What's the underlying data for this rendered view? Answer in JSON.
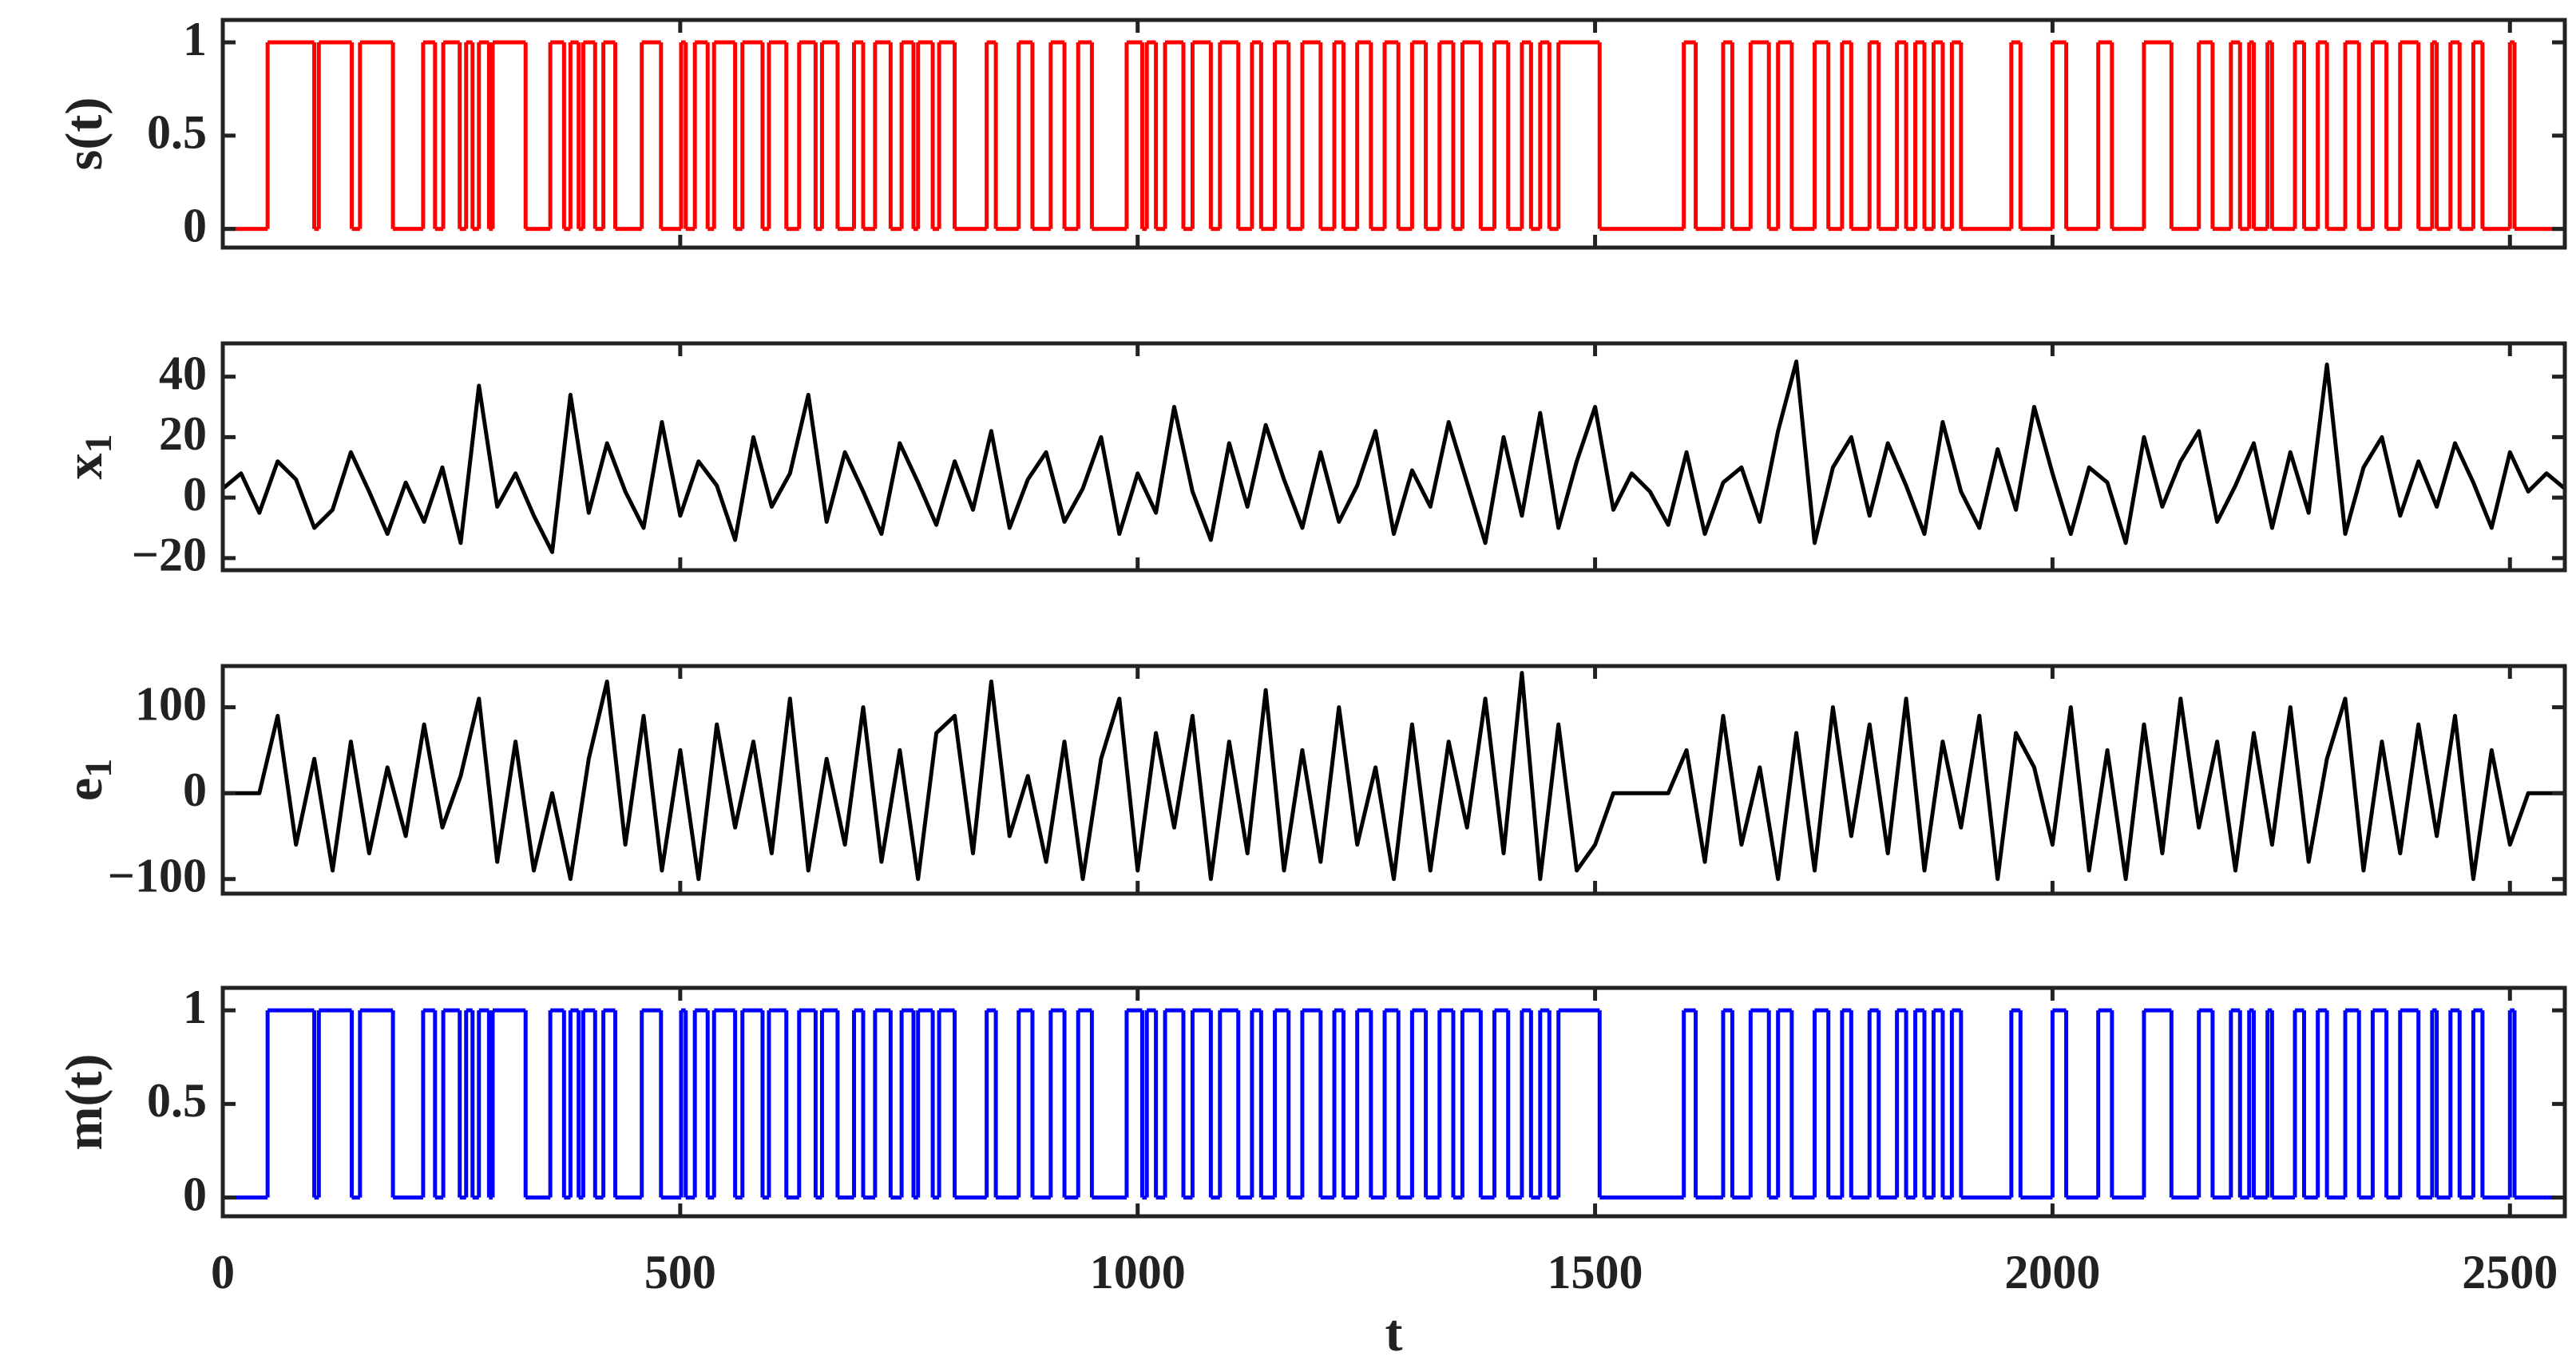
{
  "chart_data": [
    {
      "type": "step",
      "ylabel": {
        "text": "s(t)"
      },
      "color": "#ff0000",
      "xlim": [
        0,
        2560
      ],
      "xticks": [
        0,
        500,
        1000,
        1500,
        2000,
        2500
      ],
      "ylim": [
        -0.1,
        1.12
      ],
      "yticks": [
        0,
        0.5,
        1
      ],
      "x": [
        0,
        49,
        100,
        105,
        141,
        150,
        186,
        219,
        232,
        241,
        259,
        266,
        273,
        280,
        291,
        295,
        331,
        358,
        373,
        380,
        389,
        394,
        407,
        416,
        429,
        458,
        479,
        501,
        506,
        516,
        530,
        537,
        560,
        568,
        590,
        597,
        616,
        630,
        648,
        655,
        672,
        690,
        700,
        713,
        730,
        742,
        755,
        760,
        776,
        783,
        800,
        835,
        845,
        870,
        885,
        905,
        920,
        935,
        950,
        988,
        1005,
        1010,
        1020,
        1030,
        1050,
        1060,
        1080,
        1090,
        1110,
        1125,
        1135,
        1150,
        1165,
        1180,
        1200,
        1215,
        1225,
        1240,
        1255,
        1270,
        1285,
        1300,
        1315,
        1330,
        1345,
        1355,
        1375,
        1390,
        1405,
        1420,
        1430,
        1440,
        1450,
        1460,
        1505,
        1597,
        1610,
        1640,
        1650,
        1670,
        1690,
        1700,
        1715,
        1740,
        1755,
        1770,
        1780,
        1800,
        1810,
        1830,
        1840,
        1850,
        1860,
        1870,
        1880,
        1890,
        1900,
        1955,
        1965,
        2000,
        2015,
        2050,
        2065,
        2100,
        2130,
        2160,
        2175,
        2195,
        2205,
        2215,
        2220,
        2235,
        2240,
        2265,
        2275,
        2290,
        2300,
        2320,
        2335,
        2350,
        2365,
        2380,
        2400,
        2415,
        2420,
        2435,
        2445,
        2460,
        2470,
        2500,
        2505
      ],
      "values": [
        0,
        1,
        0,
        1,
        0,
        1,
        0,
        1,
        0,
        1,
        0,
        1,
        0,
        1,
        0,
        1,
        0,
        1,
        0,
        1,
        0,
        1,
        0,
        1,
        0,
        1,
        0,
        1,
        0,
        1,
        0,
        1,
        0,
        1,
        0,
        1,
        0,
        1,
        0,
        1,
        0,
        1,
        0,
        1,
        0,
        1,
        0,
        1,
        0,
        1,
        0,
        1,
        0,
        1,
        0,
        1,
        0,
        1,
        0,
        1,
        0,
        1,
        0,
        1,
        0,
        1,
        0,
        1,
        0,
        1,
        0,
        1,
        0,
        1,
        0,
        1,
        0,
        1,
        0,
        1,
        0,
        1,
        0,
        1,
        0,
        1,
        0,
        1,
        0,
        1,
        0,
        1,
        0,
        1,
        0,
        1,
        0,
        1,
        0,
        1,
        0,
        1,
        0,
        1,
        0,
        1,
        0,
        1,
        0,
        1,
        0,
        1,
        0,
        1,
        0,
        1,
        0,
        1,
        0,
        1,
        0,
        1,
        0,
        1,
        0,
        1,
        0,
        1,
        0,
        1,
        0,
        1,
        0,
        1,
        0,
        1,
        0,
        1,
        0,
        1,
        0,
        1,
        0,
        1,
        0,
        1,
        0,
        1,
        0,
        1,
        0
      ]
    },
    {
      "type": "line",
      "ylabel": {
        "text": "x",
        "subscript": "1"
      },
      "color": "#000000",
      "xlim": [
        0,
        2560
      ],
      "xticks": [
        0,
        500,
        1000,
        1500,
        2000,
        2500
      ],
      "ylim": [
        -24,
        51
      ],
      "yticks": [
        {
          "value": -20,
          "label": "−20"
        },
        0,
        20,
        40
      ],
      "x": [
        0,
        20,
        40,
        60,
        80,
        100,
        120,
        140,
        160,
        180,
        200,
        220,
        240,
        260,
        280,
        300,
        320,
        340,
        360,
        380,
        400,
        420,
        440,
        460,
        480,
        500,
        520,
        540,
        560,
        580,
        600,
        620,
        640,
        660,
        680,
        700,
        720,
        740,
        760,
        780,
        800,
        820,
        840,
        860,
        880,
        900,
        920,
        940,
        960,
        980,
        1000,
        1020,
        1040,
        1060,
        1080,
        1100,
        1120,
        1140,
        1160,
        1180,
        1200,
        1220,
        1240,
        1260,
        1280,
        1300,
        1320,
        1340,
        1360,
        1380,
        1400,
        1420,
        1440,
        1460,
        1480,
        1500,
        1520,
        1540,
        1560,
        1580,
        1600,
        1620,
        1640,
        1660,
        1680,
        1700,
        1720,
        1740,
        1760,
        1780,
        1800,
        1820,
        1840,
        1860,
        1880,
        1900,
        1920,
        1940,
        1960,
        1980,
        2000,
        2020,
        2040,
        2060,
        2080,
        2100,
        2120,
        2140,
        2160,
        2180,
        2200,
        2220,
        2240,
        2260,
        2280,
        2300,
        2320,
        2340,
        2360,
        2380,
        2400,
        2420,
        2440,
        2460,
        2480,
        2500,
        2520,
        2540,
        2560
      ],
      "values": [
        3,
        8,
        -5,
        12,
        6,
        -10,
        -4,
        15,
        2,
        -12,
        5,
        -8,
        10,
        -15,
        37,
        -3,
        8,
        -6,
        -18,
        34,
        -5,
        18,
        2,
        -10,
        25,
        -6,
        12,
        4,
        -14,
        20,
        -3,
        8,
        34,
        -8,
        15,
        2,
        -12,
        18,
        5,
        -9,
        12,
        -4,
        22,
        -10,
        6,
        15,
        -8,
        3,
        20,
        -12,
        8,
        -5,
        30,
        2,
        -14,
        18,
        -3,
        24,
        6,
        -10,
        15,
        -8,
        4,
        22,
        -12,
        9,
        -3,
        25,
        5,
        -15,
        20,
        -6,
        28,
        -10,
        12,
        30,
        -4,
        8,
        2,
        -9,
        15,
        -12,
        5,
        10,
        -8,
        22,
        45,
        -15,
        10,
        20,
        -6,
        18,
        4,
        -12,
        25,
        2,
        -10,
        16,
        -4,
        30,
        8,
        -12,
        10,
        5,
        -15,
        20,
        -3,
        12,
        22,
        -8,
        4,
        18,
        -10,
        15,
        -5,
        44,
        -12,
        10,
        20,
        -6,
        12,
        -3,
        18,
        5,
        -10,
        15,
        2,
        8,
        3
      ]
    },
    {
      "type": "line",
      "ylabel": {
        "text": "e",
        "subscript": "1"
      },
      "color": "#000000",
      "xlim": [
        0,
        2560
      ],
      "xticks": [
        0,
        500,
        1000,
        1500,
        2000,
        2500
      ],
      "ylim": [
        -117,
        148
      ],
      "yticks": [
        {
          "value": -100,
          "label": "−100"
        },
        0,
        100
      ],
      "x": [
        0,
        20,
        40,
        60,
        80,
        100,
        120,
        140,
        160,
        180,
        200,
        220,
        240,
        260,
        280,
        300,
        320,
        340,
        360,
        380,
        400,
        420,
        440,
        460,
        480,
        500,
        520,
        540,
        560,
        580,
        600,
        620,
        640,
        660,
        680,
        700,
        720,
        740,
        760,
        780,
        800,
        820,
        840,
        860,
        880,
        900,
        920,
        940,
        960,
        980,
        1000,
        1020,
        1040,
        1060,
        1080,
        1100,
        1120,
        1140,
        1160,
        1180,
        1200,
        1220,
        1240,
        1260,
        1280,
        1300,
        1320,
        1340,
        1360,
        1380,
        1400,
        1420,
        1440,
        1460,
        1480,
        1500,
        1520,
        1540,
        1560,
        1580,
        1600,
        1620,
        1640,
        1660,
        1680,
        1700,
        1720,
        1740,
        1760,
        1780,
        1800,
        1820,
        1840,
        1860,
        1880,
        1900,
        1920,
        1940,
        1960,
        1980,
        2000,
        2020,
        2040,
        2060,
        2080,
        2100,
        2120,
        2140,
        2160,
        2180,
        2200,
        2220,
        2240,
        2260,
        2280,
        2300,
        2320,
        2340,
        2360,
        2380,
        2400,
        2420,
        2440,
        2460,
        2480,
        2500,
        2520,
        2540,
        2560
      ],
      "values": [
        0,
        0,
        0,
        90,
        -60,
        40,
        -90,
        60,
        -70,
        30,
        -50,
        80,
        -40,
        20,
        110,
        -80,
        60,
        -90,
        0,
        -100,
        40,
        130,
        -60,
        90,
        -90,
        50,
        -100,
        80,
        -40,
        60,
        -70,
        110,
        -90,
        40,
        -60,
        100,
        -80,
        50,
        -100,
        70,
        90,
        -70,
        130,
        -50,
        20,
        -80,
        60,
        -100,
        40,
        110,
        -90,
        70,
        -40,
        90,
        -100,
        60,
        -70,
        120,
        -90,
        50,
        -80,
        100,
        -60,
        30,
        -100,
        80,
        -90,
        60,
        -40,
        110,
        -70,
        140,
        -100,
        80,
        -90,
        -60,
        0,
        0,
        0,
        0,
        50,
        -80,
        90,
        -60,
        30,
        -100,
        70,
        -90,
        100,
        -50,
        80,
        -70,
        110,
        -90,
        60,
        -40,
        90,
        -100,
        70,
        30,
        -60,
        100,
        -90,
        50,
        -100,
        80,
        -70,
        110,
        -40,
        60,
        -90,
        70,
        -60,
        100,
        -80,
        40,
        110,
        -90,
        60,
        -70,
        80,
        -50,
        90,
        -100,
        50,
        -60,
        0,
        0,
        0
      ]
    },
    {
      "type": "step",
      "ylabel": {
        "text": "m(t)"
      },
      "xlabel": "t",
      "color": "#0000ff",
      "xlim": [
        0,
        2560
      ],
      "xticks": [
        0,
        500,
        1000,
        1500,
        2000,
        2500
      ],
      "ylim": [
        -0.1,
        1.12
      ],
      "yticks": [
        0,
        0.5,
        1
      ],
      "x": [
        0,
        49,
        100,
        105,
        141,
        150,
        186,
        219,
        232,
        241,
        259,
        266,
        273,
        280,
        291,
        295,
        331,
        358,
        373,
        380,
        389,
        394,
        407,
        416,
        429,
        458,
        479,
        501,
        506,
        516,
        530,
        537,
        560,
        568,
        590,
        597,
        616,
        630,
        648,
        655,
        672,
        690,
        700,
        713,
        730,
        742,
        755,
        760,
        776,
        783,
        800,
        835,
        845,
        870,
        885,
        905,
        920,
        935,
        950,
        988,
        1005,
        1010,
        1020,
        1030,
        1050,
        1060,
        1080,
        1090,
        1110,
        1125,
        1135,
        1150,
        1165,
        1180,
        1200,
        1215,
        1225,
        1240,
        1255,
        1270,
        1285,
        1300,
        1315,
        1330,
        1345,
        1355,
        1375,
        1390,
        1405,
        1420,
        1430,
        1440,
        1450,
        1460,
        1505,
        1597,
        1610,
        1640,
        1650,
        1670,
        1690,
        1700,
        1715,
        1740,
        1755,
        1770,
        1780,
        1800,
        1810,
        1830,
        1840,
        1850,
        1860,
        1870,
        1880,
        1890,
        1900,
        1955,
        1965,
        2000,
        2015,
        2050,
        2065,
        2100,
        2130,
        2160,
        2175,
        2195,
        2205,
        2215,
        2220,
        2235,
        2240,
        2265,
        2275,
        2290,
        2300,
        2320,
        2335,
        2350,
        2365,
        2380,
        2400,
        2415,
        2420,
        2435,
        2445,
        2460,
        2470,
        2500,
        2505
      ],
      "values": [
        0,
        1,
        0,
        1,
        0,
        1,
        0,
        1,
        0,
        1,
        0,
        1,
        0,
        1,
        0,
        1,
        0,
        1,
        0,
        1,
        0,
        1,
        0,
        1,
        0,
        1,
        0,
        1,
        0,
        1,
        0,
        1,
        0,
        1,
        0,
        1,
        0,
        1,
        0,
        1,
        0,
        1,
        0,
        1,
        0,
        1,
        0,
        1,
        0,
        1,
        0,
        1,
        0,
        1,
        0,
        1,
        0,
        1,
        0,
        1,
        0,
        1,
        0,
        1,
        0,
        1,
        0,
        1,
        0,
        1,
        0,
        1,
        0,
        1,
        0,
        1,
        0,
        1,
        0,
        1,
        0,
        1,
        0,
        1,
        0,
        1,
        0,
        1,
        0,
        1,
        0,
        1,
        0,
        1,
        0,
        1,
        0,
        1,
        0,
        1,
        0,
        1,
        0,
        1,
        0,
        1,
        0,
        1,
        0,
        1,
        0,
        1,
        0,
        1,
        0,
        1,
        0,
        1,
        0,
        1,
        0,
        1,
        0,
        1,
        0,
        1,
        0,
        1,
        0,
        1,
        0,
        1,
        0,
        1,
        0,
        1,
        0,
        1,
        0,
        1,
        0,
        1,
        0,
        1,
        0,
        1,
        0,
        1,
        0,
        1,
        0
      ]
    }
  ]
}
